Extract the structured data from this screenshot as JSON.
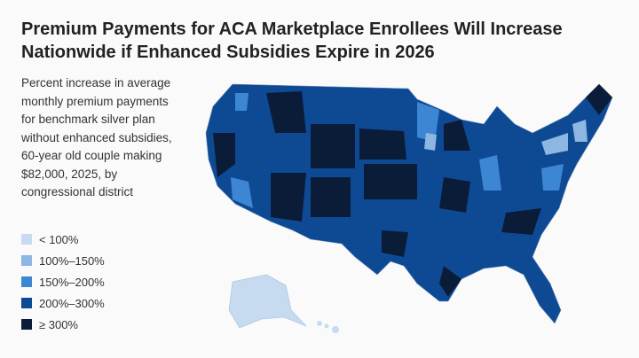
{
  "header": {
    "title": "Premium Payments for ACA Marketplace Enrollees Will Increase Nationwide if Enhanced Subsidies Expire in 2026"
  },
  "description": "Percent increase in average monthly premium payments for benchmark silver plan without enhanced subsidies, 60-year old couple making $82,000, 2025, by congressional district",
  "legend": [
    {
      "label": "< 100%",
      "color": "#c6dbef"
    },
    {
      "label": "100%–150%",
      "color": "#8db6e2"
    },
    {
      "label": "150%–200%",
      "color": "#3d86d4"
    },
    {
      "label": "200%–300%",
      "color": "#0e4a94"
    },
    {
      "label": "≥ 300%",
      "color": "#0b1c38"
    }
  ]
}
